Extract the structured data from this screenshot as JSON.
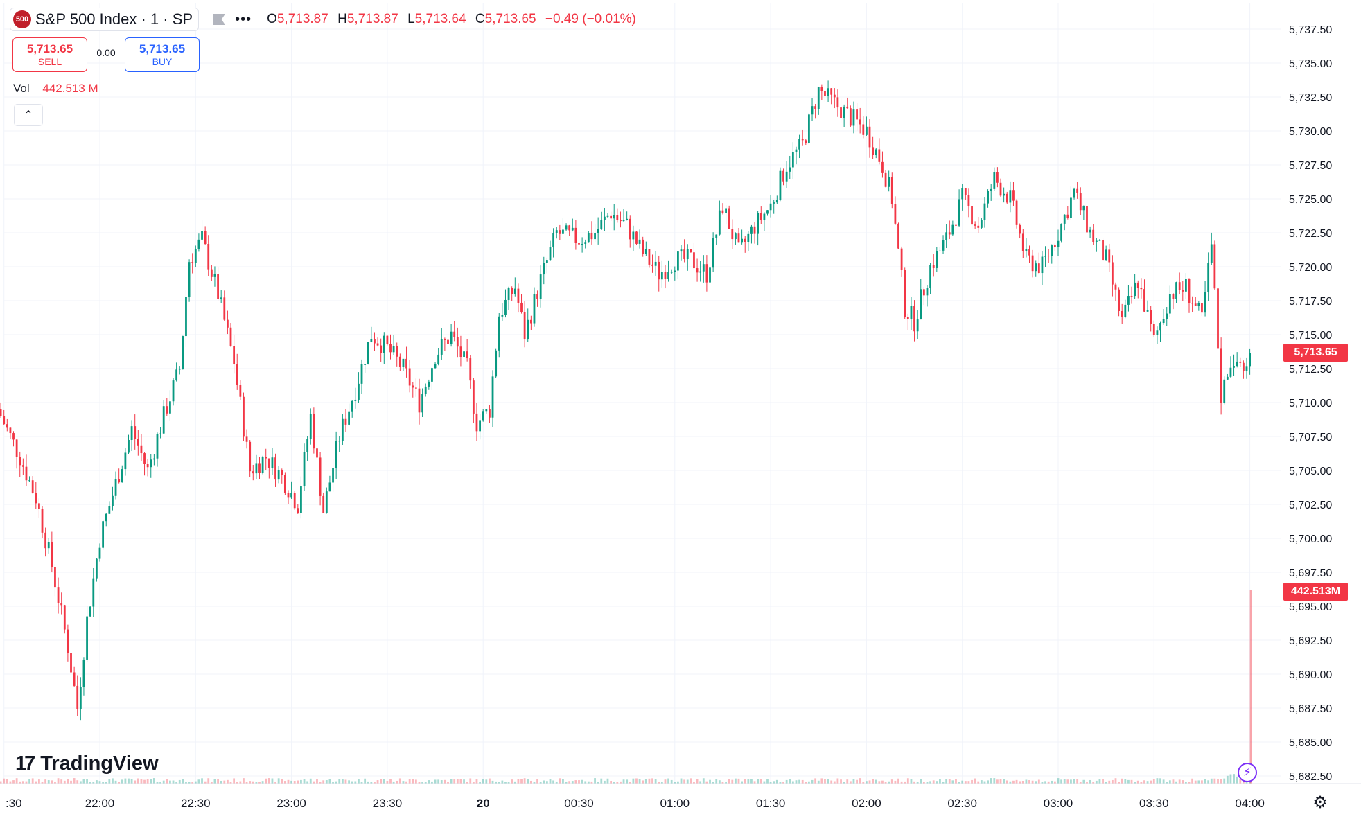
{
  "header": {
    "symbol_badge": "500",
    "symbol_title": "S&P 500 Index · 1 · SP",
    "flag_icon": "flag-icon",
    "more_icon": "more-dots-icon",
    "ohlc": {
      "o_label": "O",
      "o_value": "5,713.87",
      "h_label": "H",
      "h_value": "5,713.87",
      "l_label": "L",
      "l_value": "5,713.64",
      "c_label": "C",
      "c_value": "5,713.65",
      "change": "−0.49 (−0.01%)"
    }
  },
  "trade": {
    "sell_price": "5,713.65",
    "sell_label": "SELL",
    "spread": "0.00",
    "buy_price": "5,713.65",
    "buy_label": "BUY"
  },
  "volume": {
    "label": "Vol",
    "value": "442.513 M"
  },
  "collapse_icon": "chevron-up-icon",
  "branding": {
    "logo_mark": "17",
    "logo_text": "TradingView"
  },
  "price_axis": {
    "ticks": [
      "5,737.50",
      "5,735.00",
      "5,732.50",
      "5,730.00",
      "5,727.50",
      "5,725.00",
      "5,722.50",
      "5,720.00",
      "5,717.50",
      "5,715.00",
      "5,712.50",
      "5,710.00",
      "5,707.50",
      "5,705.00",
      "5,702.50",
      "5,700.00",
      "5,697.50",
      "5,695.00",
      "5,692.50",
      "5,690.00",
      "5,687.50",
      "5,685.00",
      "5,682.50"
    ],
    "last_price_tag": "5,713.65",
    "volume_tag": "442.513M"
  },
  "time_axis": {
    "ticks": [
      ":30",
      "22:00",
      "22:30",
      "23:00",
      "23:30",
      "20",
      "00:30",
      "01:00",
      "01:30",
      "02:00",
      "02:30",
      "03:00",
      "03:30",
      "04:00"
    ]
  },
  "controls": {
    "bolt_icon": "lightning-icon",
    "settings_icon": "settings-gear-icon"
  },
  "colors": {
    "up": "#089981",
    "down": "#f23645",
    "grid": "#f0f3fa",
    "axis_text": "#131722"
  },
  "chart_data": {
    "type": "candlestick",
    "title": "S&P 500 Index · 1 · SP",
    "interval": "1 minute",
    "ylim": [
      5681.5,
      5739.0
    ],
    "last_price": 5713.65,
    "grid": true,
    "anchors": [
      {
        "time": "21:28",
        "price": 5709.5
      },
      {
        "time": "21:35",
        "price": 5706.0
      },
      {
        "time": "21:40",
        "price": 5703.0
      },
      {
        "time": "21:45",
        "price": 5698.0
      },
      {
        "time": "21:50",
        "price": 5692.0
      },
      {
        "time": "21:53",
        "price": 5687.5
      },
      {
        "time": "21:56",
        "price": 5694.0
      },
      {
        "time": "22:00",
        "price": 5700.0
      },
      {
        "time": "22:05",
        "price": 5704.0
      },
      {
        "time": "22:10",
        "price": 5708.0
      },
      {
        "time": "22:15",
        "price": 5705.0
      },
      {
        "time": "22:20",
        "price": 5709.0
      },
      {
        "time": "22:25",
        "price": 5712.5
      },
      {
        "time": "22:28",
        "price": 5720.5
      },
      {
        "time": "22:32",
        "price": 5722.0
      },
      {
        "time": "22:37",
        "price": 5718.0
      },
      {
        "time": "22:42",
        "price": 5713.0
      },
      {
        "time": "22:47",
        "price": 5705.0
      },
      {
        "time": "22:52",
        "price": 5706.0
      },
      {
        "time": "22:57",
        "price": 5704.5
      },
      {
        "time": "23:02",
        "price": 5702.5
      },
      {
        "time": "23:06",
        "price": 5709.0
      },
      {
        "time": "23:10",
        "price": 5702.0
      },
      {
        "time": "23:15",
        "price": 5707.5
      },
      {
        "time": "23:20",
        "price": 5711.0
      },
      {
        "time": "23:25",
        "price": 5715.0
      },
      {
        "time": "23:30",
        "price": 5714.0
      },
      {
        "time": "23:35",
        "price": 5712.5
      },
      {
        "time": "23:40",
        "price": 5710.0
      },
      {
        "time": "23:45",
        "price": 5713.5
      },
      {
        "time": "23:50",
        "price": 5715.0
      },
      {
        "time": "23:55",
        "price": 5712.5
      },
      {
        "time": "23:58",
        "price": 5708.5
      },
      {
        "time": "00:02",
        "price": 5709.5
      },
      {
        "time": "00:05",
        "price": 5716.5
      },
      {
        "time": "00:10",
        "price": 5718.5
      },
      {
        "time": "00:13",
        "price": 5715.0
      },
      {
        "time": "00:18",
        "price": 5719.0
      },
      {
        "time": "00:23",
        "price": 5722.5
      },
      {
        "time": "00:30",
        "price": 5722.0
      },
      {
        "time": "00:35",
        "price": 5722.5
      },
      {
        "time": "00:40",
        "price": 5724.0
      },
      {
        "time": "00:45",
        "price": 5723.0
      },
      {
        "time": "00:50",
        "price": 5721.0
      },
      {
        "time": "00:55",
        "price": 5719.5
      },
      {
        "time": "01:00",
        "price": 5720.5
      },
      {
        "time": "01:05",
        "price": 5720.5
      },
      {
        "time": "01:10",
        "price": 5719.5
      },
      {
        "time": "01:15",
        "price": 5724.5
      },
      {
        "time": "01:20",
        "price": 5721.0
      },
      {
        "time": "01:25",
        "price": 5723.0
      },
      {
        "time": "01:30",
        "price": 5724.5
      },
      {
        "time": "01:35",
        "price": 5727.5
      },
      {
        "time": "01:40",
        "price": 5729.0
      },
      {
        "time": "01:45",
        "price": 5733.0
      },
      {
        "time": "01:50",
        "price": 5732.0
      },
      {
        "time": "01:55",
        "price": 5731.0
      },
      {
        "time": "02:00",
        "price": 5730.0
      },
      {
        "time": "02:05",
        "price": 5727.5
      },
      {
        "time": "02:08",
        "price": 5725.0
      },
      {
        "time": "02:12",
        "price": 5717.0
      },
      {
        "time": "02:15",
        "price": 5716.0
      },
      {
        "time": "02:20",
        "price": 5720.0
      },
      {
        "time": "02:25",
        "price": 5722.0
      },
      {
        "time": "02:30",
        "price": 5725.0
      },
      {
        "time": "02:35",
        "price": 5723.0
      },
      {
        "time": "02:40",
        "price": 5726.5
      },
      {
        "time": "02:45",
        "price": 5725.0
      },
      {
        "time": "02:50",
        "price": 5720.5
      },
      {
        "time": "02:55",
        "price": 5720.0
      },
      {
        "time": "03:00",
        "price": 5722.5
      },
      {
        "time": "03:05",
        "price": 5725.5
      },
      {
        "time": "03:10",
        "price": 5722.5
      },
      {
        "time": "03:15",
        "price": 5720.5
      },
      {
        "time": "03:20",
        "price": 5716.0
      },
      {
        "time": "03:25",
        "price": 5719.0
      },
      {
        "time": "03:30",
        "price": 5714.5
      },
      {
        "time": "03:35",
        "price": 5718.0
      },
      {
        "time": "03:40",
        "price": 5718.5
      },
      {
        "time": "03:45",
        "price": 5716.0
      },
      {
        "time": "03:48",
        "price": 5721.5
      },
      {
        "time": "03:51",
        "price": 5710.5
      },
      {
        "time": "03:55",
        "price": 5713.5
      },
      {
        "time": "03:58",
        "price": 5712.0
      },
      {
        "time": "04:00",
        "price": 5713.65
      }
    ],
    "volume": {
      "last": 442.513,
      "unit": "M",
      "last_bar_spike": true
    }
  }
}
